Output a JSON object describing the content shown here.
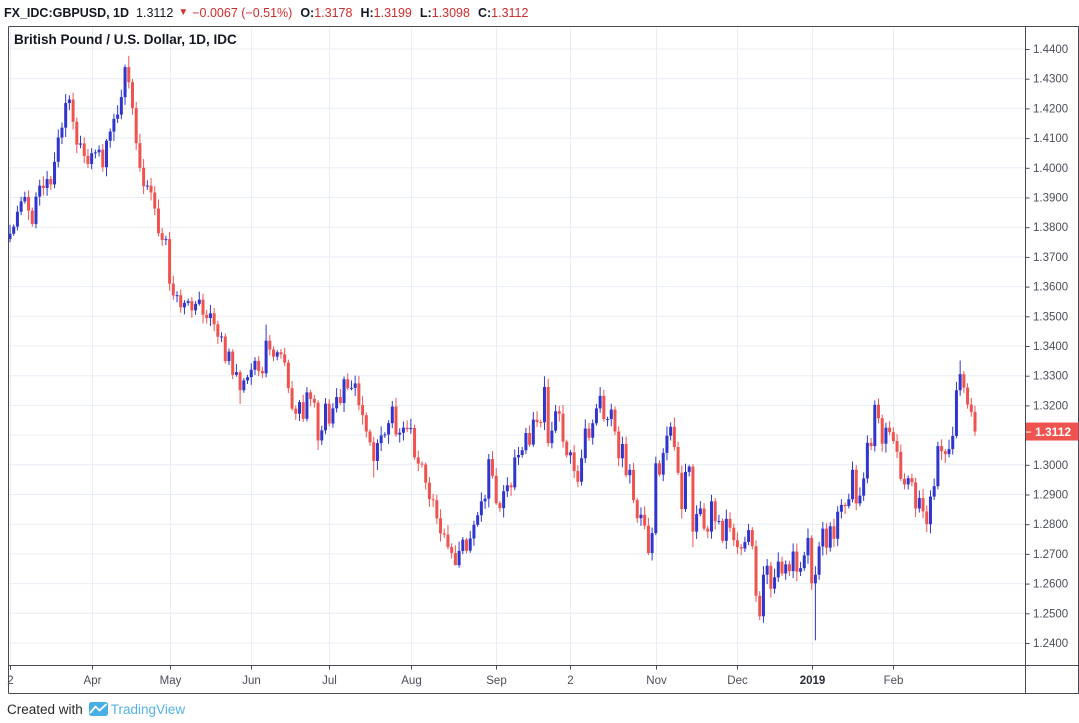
{
  "topbar": {
    "symbol": "FX_IDC:GBPUSD, 1D",
    "last_price": "1.3112",
    "direction": "▼",
    "change": "−0.0067 (−0.51%)",
    "open_label": "O:",
    "open_value": "1.3178",
    "high_label": "H:",
    "high_value": "1.3199",
    "low_label": "L:",
    "low_value": "1.3098",
    "close_label": "C:",
    "close_value": "1.3112"
  },
  "chart": {
    "title": "British Pound / U.S. Dollar, 1D, IDC"
  },
  "footer": {
    "created_with": "Created with",
    "brand": "TradingView"
  },
  "colors": {
    "up": "#2f36cd",
    "down": "#ef5350",
    "badge": "#ef5350",
    "badge_text": "#ffffff",
    "grid": "#e8eef5",
    "frame": "#474a54",
    "axis_text": "#4a4e59",
    "change_red": "#cf2b2b",
    "brand_blue": "#53b2e7",
    "logo_blue": "#47aee6"
  },
  "chart_data": {
    "type": "candlestick",
    "symbol": "FX_IDC:GBPUSD",
    "interval": "1D",
    "exchange": "IDC",
    "title": "British Pound / U.S. Dollar, 1D, IDC",
    "last_price": 1.3112,
    "last_price_label": "1.3112",
    "y_axis_labels": [
      "1.4400",
      "1.4300",
      "1.4200",
      "1.4100",
      "1.4000",
      "1.3900",
      "1.3800",
      "1.3700",
      "1.3600",
      "1.3500",
      "1.3400",
      "1.3300",
      "1.3200",
      "1.3100",
      "1.3000",
      "1.2900",
      "1.2800",
      "1.2700",
      "1.2600",
      "1.2500",
      "1.2400"
    ],
    "y_tick_step": 0.01,
    "ylim": [
      1.2325,
      1.4472
    ],
    "x_ticks": [
      {
        "label": "2",
        "day": 0,
        "bold": false
      },
      {
        "label": "Apr",
        "day": 22,
        "bold": false
      },
      {
        "label": "May",
        "day": 43,
        "bold": false
      },
      {
        "label": "Jun",
        "day": 65,
        "bold": false
      },
      {
        "label": "Jul",
        "day": 86,
        "bold": false
      },
      {
        "label": "Aug",
        "day": 108,
        "bold": false
      },
      {
        "label": "Sep",
        "day": 131,
        "bold": false
      },
      {
        "label": "2",
        "day": 151,
        "bold": false
      },
      {
        "label": "Nov",
        "day": 174,
        "bold": false
      },
      {
        "label": "Dec",
        "day": 196,
        "bold": false
      },
      {
        "label": "2019",
        "day": 216,
        "bold": true
      },
      {
        "label": "Feb",
        "day": 238,
        "bold": false
      }
    ],
    "closes": [
      1.3778,
      1.3802,
      1.3852,
      1.3887,
      1.3902,
      1.3856,
      1.3811,
      1.3903,
      1.394,
      1.3932,
      1.3962,
      1.3944,
      1.402,
      1.4102,
      1.4135,
      1.4218,
      1.423,
      1.4155,
      1.4078,
      1.4082,
      1.404,
      1.4013,
      1.4049,
      1.4052,
      1.4061,
      1.4002,
      1.4091,
      1.4122,
      1.4165,
      1.4179,
      1.4238,
      1.4339,
      1.4288,
      1.4201,
      1.4083,
      1.4,
      1.3938,
      1.394,
      1.3917,
      1.3863,
      1.378,
      1.3757,
      1.376,
      1.361,
      1.357,
      1.3571,
      1.353,
      1.3545,
      1.3551,
      1.352,
      1.3542,
      1.3556,
      1.3505,
      1.3494,
      1.351,
      1.3473,
      1.3431,
      1.3432,
      1.3349,
      1.3381,
      1.3303,
      1.3312,
      1.3251,
      1.3284,
      1.3295,
      1.332,
      1.335,
      1.3316,
      1.3308,
      1.3418,
      1.3388,
      1.3364,
      1.3379,
      1.3372,
      1.3344,
      1.3258,
      1.3189,
      1.3172,
      1.3211,
      1.3155,
      1.3244,
      1.3222,
      1.3209,
      1.3082,
      1.3116,
      1.3206,
      1.3139,
      1.319,
      1.3228,
      1.3208,
      1.3288,
      1.3258,
      1.3259,
      1.3274,
      1.3201,
      1.3167,
      1.3112,
      1.3076,
      1.3013,
      1.3073,
      1.3099,
      1.3102,
      1.314,
      1.3196,
      1.3102,
      1.3108,
      1.3125,
      1.312,
      1.3124,
      1.3025,
      1.3004,
      1.3001,
      1.294,
      1.2884,
      1.2881,
      1.282,
      1.2769,
      1.2765,
      1.2723,
      1.2703,
      1.2662,
      1.271,
      1.2748,
      1.2711,
      1.2752,
      1.2798,
      1.283,
      1.2877,
      1.2886,
      1.3019,
      1.2963,
      1.2871,
      1.2854,
      1.2911,
      1.2931,
      1.2924,
      1.3025,
      1.3033,
      1.3049,
      1.3107,
      1.3068,
      1.3152,
      1.3144,
      1.3143,
      1.3262,
      1.3073,
      1.3115,
      1.318,
      1.3172,
      1.3078,
      1.3032,
      1.3042,
      1.2979,
      1.2943,
      1.3022,
      1.3122,
      1.3091,
      1.314,
      1.319,
      1.3232,
      1.3154,
      1.3154,
      1.3186,
      1.3112,
      1.3022,
      1.307,
      1.2965,
      1.2983,
      1.2881,
      1.282,
      1.2832,
      1.2795,
      1.2703,
      1.277,
      1.3005,
      1.2967,
      1.304,
      1.3098,
      1.3128,
      1.306,
      1.2973,
      1.2851,
      1.2976,
      1.2994,
      1.2775,
      1.2834,
      1.2853,
      1.2785,
      1.2775,
      1.2877,
      1.281,
      1.2811,
      1.2744,
      1.2818,
      1.2788,
      1.2746,
      1.2723,
      1.2718,
      1.274,
      1.278,
      1.2726,
      1.2559,
      1.249,
      1.263,
      1.266,
      1.2583,
      1.2621,
      1.2674,
      1.2634,
      1.2665,
      1.2642,
      1.2708,
      1.264,
      1.2652,
      1.2695,
      1.2754,
      1.2601,
      1.263,
      1.2725,
      1.2785,
      1.2721,
      1.2793,
      1.2751,
      1.2842,
      1.2865,
      1.2861,
      1.2884,
      1.2983,
      1.287,
      1.2896,
      1.2954,
      1.3074,
      1.3063,
      1.3202,
      1.3157,
      1.3071,
      1.3125,
      1.311,
      1.308,
      1.3044,
      1.2953,
      1.2934,
      1.2955,
      1.2941,
      1.2853,
      1.2888,
      1.2843,
      1.28,
      1.2893,
      1.2928,
      1.3063,
      1.3046,
      1.3036,
      1.3053,
      1.3097,
      1.3251,
      1.3305,
      1.326,
      1.3203,
      1.3178,
      1.3112
    ],
    "wick_overrides": {
      "16": {
        "h": 1.4244
      },
      "31": {
        "h": 1.4347
      },
      "32": {
        "h": 1.4377
      },
      "62": {
        "l": 1.3205
      },
      "69": {
        "h": 1.3472
      },
      "83": {
        "l": 1.305
      },
      "98": {
        "l": 1.2957
      },
      "120": {
        "l": 1.2662
      },
      "144": {
        "h": 1.3298
      },
      "172": {
        "l": 1.2696
      },
      "184": {
        "l": 1.2723
      },
      "202": {
        "l": 1.2477
      },
      "217": {
        "l": 1.2409
      },
      "247": {
        "l": 1.2773
      },
      "256": {
        "h": 1.3351
      },
      "260": {
        "o": 1.3178,
        "h": 1.3199,
        "l": 1.3098,
        "c": 1.3112
      }
    }
  }
}
